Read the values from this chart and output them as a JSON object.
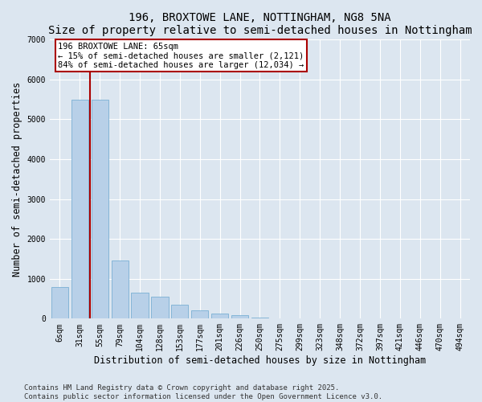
{
  "title": "196, BROXTOWE LANE, NOTTINGHAM, NG8 5NA",
  "subtitle": "Size of property relative to semi-detached houses in Nottingham",
  "xlabel": "Distribution of semi-detached houses by size in Nottingham",
  "ylabel": "Number of semi-detached properties",
  "categories": [
    "6sqm",
    "31sqm",
    "55sqm",
    "79sqm",
    "104sqm",
    "128sqm",
    "153sqm",
    "177sqm",
    "201sqm",
    "226sqm",
    "250sqm",
    "275sqm",
    "299sqm",
    "323sqm",
    "348sqm",
    "372sqm",
    "397sqm",
    "421sqm",
    "446sqm",
    "470sqm",
    "494sqm"
  ],
  "values": [
    800,
    5500,
    5500,
    1450,
    650,
    550,
    350,
    200,
    130,
    80,
    30,
    10,
    5,
    2,
    1,
    0,
    0,
    0,
    0,
    0,
    0
  ],
  "bar_color": "#b8d0e8",
  "bar_edge_color": "#7aafd4",
  "vline_x_index": 1.5,
  "vline_color": "#aa0000",
  "annotation_text": "196 BROXTOWE LANE: 65sqm\n← 15% of semi-detached houses are smaller (2,121)\n84% of semi-detached houses are larger (12,034) →",
  "annotation_box_facecolor": "#ffffff",
  "annotation_box_edgecolor": "#aa0000",
  "footer": "Contains HM Land Registry data © Crown copyright and database right 2025.\nContains public sector information licensed under the Open Government Licence v3.0.",
  "bg_color": "#dce6f0",
  "plot_bg_color": "#dce6f0",
  "ylim": [
    0,
    7000
  ],
  "yticks": [
    0,
    1000,
    2000,
    3000,
    4000,
    5000,
    6000,
    7000
  ],
  "grid_color": "#ffffff",
  "title_fontsize": 10,
  "subtitle_fontsize": 9,
  "axis_label_fontsize": 8.5,
  "tick_fontsize": 7,
  "footer_fontsize": 6.5,
  "annotation_fontsize": 7.5
}
